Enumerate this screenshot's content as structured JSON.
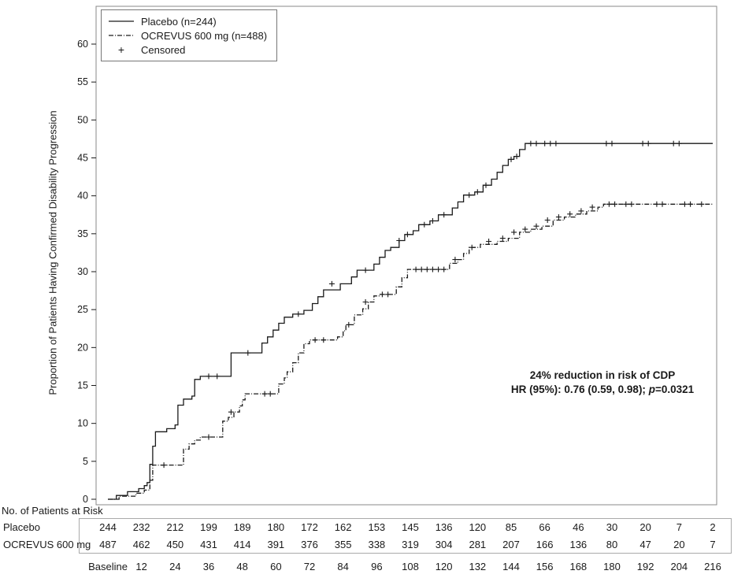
{
  "figure": {
    "y_axis_label": "Proportion of Patients Having Confirmed Disability Progression",
    "at_risk_title": "No. of Patients at Risk"
  },
  "legend": {
    "items": [
      {
        "label": "Placebo (n=244)",
        "style": "solid"
      },
      {
        "label": "OCREVUS 600 mg (n=488)",
        "style": "dashdot"
      },
      {
        "label": "Censored",
        "style": "plus"
      }
    ]
  },
  "annotation": {
    "line1": "24% reduction in risk of CDP",
    "hr_prefix": "HR (95%): 0.76 (0.59, 0.98); ",
    "p_label": "p",
    "p_value": "=0.0321"
  },
  "chart_data": {
    "type": "line",
    "subtype": "kaplan-meier-step",
    "title": "",
    "xlabel": "",
    "ylabel": "Proportion of Patients Having Confirmed Disability Progression",
    "xlim": [
      0,
      216
    ],
    "ylim": [
      0,
      60
    ],
    "y_ticks": [
      0,
      5,
      10,
      15,
      20,
      25,
      30,
      35,
      40,
      45,
      50,
      55,
      60
    ],
    "line_color": "#1a1a1a",
    "legend_position": "top-left",
    "series": [
      {
        "name": "Placebo (n=244)",
        "line": "solid",
        "steps": [
          [
            0,
            0
          ],
          [
            3,
            0.5
          ],
          [
            7,
            1.0
          ],
          [
            11,
            1.4
          ],
          [
            13,
            1.8
          ],
          [
            14,
            2.2
          ],
          [
            15,
            4.6
          ],
          [
            16,
            7.0
          ],
          [
            17,
            8.9
          ],
          [
            21,
            9.3
          ],
          [
            24,
            9.8
          ],
          [
            25,
            12.4
          ],
          [
            27,
            13.2
          ],
          [
            30,
            13.6
          ],
          [
            31,
            15.8
          ],
          [
            33,
            16.2
          ],
          [
            44,
            19.3
          ],
          [
            55,
            20.6
          ],
          [
            57,
            21.4
          ],
          [
            59,
            22.3
          ],
          [
            61,
            23.2
          ],
          [
            63,
            24.0
          ],
          [
            66,
            24.4
          ],
          [
            70,
            24.9
          ],
          [
            73,
            25.8
          ],
          [
            75,
            26.7
          ],
          [
            77,
            27.6
          ],
          [
            83,
            28.4
          ],
          [
            87,
            29.3
          ],
          [
            89,
            30.2
          ],
          [
            95,
            31.0
          ],
          [
            97,
            31.9
          ],
          [
            99,
            32.8
          ],
          [
            101,
            33.2
          ],
          [
            104,
            34.1
          ],
          [
            106,
            34.9
          ],
          [
            109,
            35.4
          ],
          [
            111,
            36.2
          ],
          [
            115,
            36.7
          ],
          [
            118,
            37.5
          ],
          [
            123,
            38.4
          ],
          [
            125,
            39.2
          ],
          [
            127,
            40.1
          ],
          [
            131,
            40.5
          ],
          [
            134,
            41.4
          ],
          [
            137,
            42.2
          ],
          [
            139,
            43.1
          ],
          [
            141,
            44.0
          ],
          [
            143,
            44.8
          ],
          [
            145,
            45.2
          ],
          [
            147,
            46.1
          ],
          [
            149,
            46.9
          ]
        ],
        "censored": [
          [
            36,
            16.2
          ],
          [
            39,
            16.2
          ],
          [
            50,
            19.3
          ],
          [
            68,
            24.4
          ],
          [
            80,
            28.4
          ],
          [
            92,
            30.2
          ],
          [
            104,
            34.1
          ],
          [
            107,
            34.9
          ],
          [
            113,
            36.2
          ],
          [
            116,
            36.7
          ],
          [
            120,
            37.5
          ],
          [
            129,
            40.1
          ],
          [
            132,
            40.5
          ],
          [
            135,
            41.4
          ],
          [
            144,
            44.8
          ],
          [
            146,
            45.2
          ],
          [
            151,
            46.9
          ],
          [
            153,
            46.9
          ],
          [
            156,
            46.9
          ],
          [
            158,
            46.9
          ],
          [
            160,
            46.9
          ],
          [
            178,
            46.9
          ],
          [
            180,
            46.9
          ],
          [
            191,
            46.9
          ],
          [
            193,
            46.9
          ],
          [
            202,
            46.9
          ],
          [
            204,
            46.9
          ]
        ]
      },
      {
        "name": "OCREVUS 600 mg (n=488)",
        "line": "dashdot",
        "steps": [
          [
            0,
            0
          ],
          [
            4,
            0.4
          ],
          [
            10,
            0.8
          ],
          [
            13,
            1.2
          ],
          [
            15,
            2.5
          ],
          [
            16,
            4.5
          ],
          [
            27,
            6.6
          ],
          [
            29,
            7.3
          ],
          [
            31,
            7.8
          ],
          [
            33,
            8.2
          ],
          [
            41,
            10.3
          ],
          [
            43,
            10.8
          ],
          [
            45,
            11.5
          ],
          [
            47,
            12.3
          ],
          [
            48,
            13.1
          ],
          [
            49,
            13.9
          ],
          [
            61,
            15.2
          ],
          [
            63,
            16.0
          ],
          [
            64,
            16.8
          ],
          [
            66,
            18.0
          ],
          [
            68,
            19.3
          ],
          [
            70,
            20.5
          ],
          [
            72,
            21.0
          ],
          [
            82,
            21.4
          ],
          [
            84,
            22.2
          ],
          [
            85,
            23.0
          ],
          [
            88,
            24.3
          ],
          [
            91,
            25.1
          ],
          [
            93,
            26.0
          ],
          [
            95,
            26.8
          ],
          [
            97,
            27.0
          ],
          [
            103,
            28.0
          ],
          [
            105,
            29.2
          ],
          [
            107,
            30.3
          ],
          [
            122,
            31.1
          ],
          [
            125,
            31.6
          ],
          [
            127,
            32.4
          ],
          [
            129,
            33.2
          ],
          [
            133,
            33.6
          ],
          [
            139,
            34.0
          ],
          [
            143,
            34.4
          ],
          [
            147,
            35.2
          ],
          [
            151,
            35.6
          ],
          [
            155,
            36.0
          ],
          [
            159,
            36.8
          ],
          [
            163,
            37.2
          ],
          [
            167,
            37.6
          ],
          [
            171,
            38.0
          ],
          [
            175,
            38.5
          ],
          [
            177,
            38.9
          ]
        ],
        "censored": [
          [
            20,
            4.5
          ],
          [
            36,
            8.2
          ],
          [
            44,
            11.5
          ],
          [
            56,
            13.9
          ],
          [
            58,
            13.9
          ],
          [
            74,
            21.0
          ],
          [
            77,
            21.0
          ],
          [
            86,
            23.0
          ],
          [
            92,
            26.0
          ],
          [
            98,
            27.0
          ],
          [
            100,
            27.0
          ],
          [
            110,
            30.3
          ],
          [
            112,
            30.3
          ],
          [
            114,
            30.3
          ],
          [
            116,
            30.3
          ],
          [
            118,
            30.3
          ],
          [
            120,
            30.3
          ],
          [
            124,
            31.6
          ],
          [
            130,
            33.2
          ],
          [
            136,
            34.0
          ],
          [
            141,
            34.4
          ],
          [
            145,
            35.2
          ],
          [
            149,
            35.6
          ],
          [
            153,
            36.0
          ],
          [
            157,
            36.8
          ],
          [
            161,
            37.2
          ],
          [
            165,
            37.6
          ],
          [
            169,
            38.0
          ],
          [
            173,
            38.5
          ],
          [
            179,
            38.9
          ],
          [
            181,
            38.9
          ],
          [
            185,
            38.9
          ],
          [
            187,
            38.9
          ],
          [
            196,
            38.9
          ],
          [
            198,
            38.9
          ],
          [
            206,
            38.9
          ],
          [
            208,
            38.9
          ],
          [
            212,
            38.9
          ]
        ]
      }
    ],
    "at_risk": {
      "times": [
        0,
        12,
        24,
        36,
        48,
        60,
        72,
        84,
        96,
        108,
        120,
        132,
        144,
        156,
        168,
        180,
        192,
        204,
        216
      ],
      "time_labels": [
        "Baseline",
        "12",
        "24",
        "36",
        "48",
        "60",
        "72",
        "84",
        "96",
        "108",
        "120",
        "132",
        "144",
        "156",
        "168",
        "180",
        "192",
        "204",
        "216"
      ],
      "rows": [
        {
          "label": "Placebo",
          "counts": [
            244,
            232,
            212,
            199,
            189,
            180,
            172,
            162,
            153,
            145,
            136,
            120,
            85,
            66,
            46,
            30,
            20,
            7,
            2
          ]
        },
        {
          "label": "OCREVUS 600 mg",
          "counts": [
            487,
            462,
            450,
            431,
            414,
            391,
            376,
            355,
            338,
            319,
            304,
            281,
            207,
            166,
            136,
            80,
            47,
            20,
            7
          ]
        }
      ]
    }
  }
}
